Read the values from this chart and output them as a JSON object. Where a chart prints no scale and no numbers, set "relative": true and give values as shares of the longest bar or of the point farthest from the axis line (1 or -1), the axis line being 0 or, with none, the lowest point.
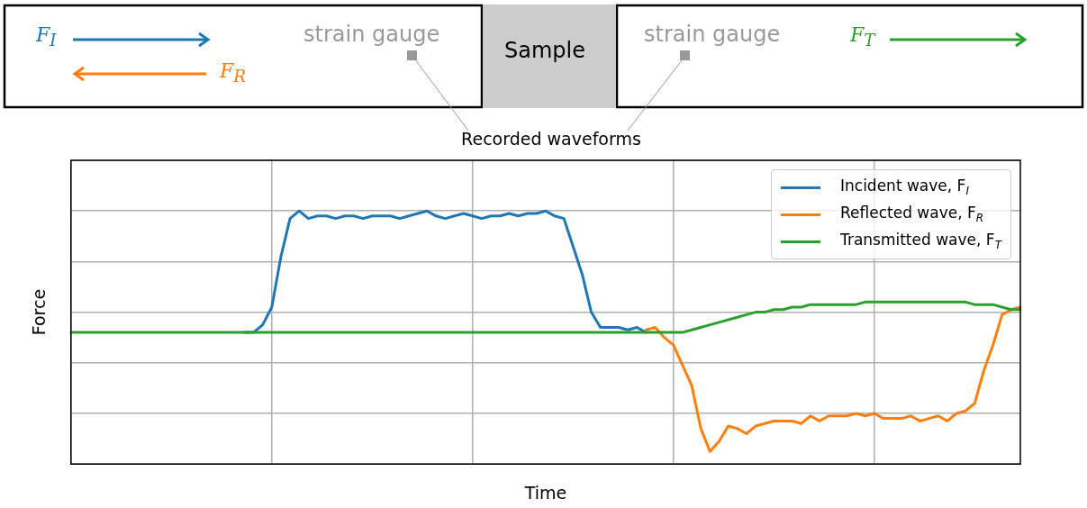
{
  "chart_data": {
    "type": "line",
    "title": "Recorded waveforms",
    "xlabel": "Time",
    "ylabel": "Force",
    "relative": true,
    "grid": true,
    "legend": "top right",
    "tick_labels": false,
    "marker": "none",
    "line_style": "solid",
    "annotations": [
      "F$_{I}$",
      "F$_{R}$",
      "strain gauge",
      "Sample",
      "strain gauge",
      "F$_{T}$"
    ],
    "categories": [
      null,
      null,
      null,
      null,
      null,
      null,
      null,
      null,
      null,
      null,
      null,
      null,
      null,
      null,
      null,
      null,
      null,
      null,
      null,
      null,
      null,
      null,
      null,
      null,
      null,
      null,
      null,
      null,
      null,
      null,
      null,
      null,
      null,
      null,
      null,
      null,
      null,
      null,
      null,
      null,
      null,
      null,
      null,
      null,
      null,
      null,
      null,
      null,
      null,
      null,
      null,
      null,
      null,
      null,
      null,
      null,
      null,
      null,
      null,
      null,
      null,
      null,
      null,
      null,
      null,
      null,
      null,
      null,
      null,
      null,
      null,
      null,
      null,
      null,
      null,
      null,
      null,
      null,
      null,
      null,
      null,
      null,
      null,
      null,
      null,
      null,
      null,
      null,
      null,
      null,
      null,
      null,
      null,
      null,
      null,
      null,
      null,
      null,
      null,
      null,
      null,
      null,
      null,
      null,
      null
    ],
    "series": [
      {
        "name": "Incident wave, F$_{I}$",
        "color": "#1f77b4",
        "values": [
          null,
          null,
          null,
          null,
          null,
          null,
          null,
          null,
          null,
          null,
          null,
          null,
          null,
          null,
          null,
          null,
          null,
          null,
          null,
          0.52,
          0.52,
          0.55,
          0.62,
          0.82,
          0.97,
          1.0,
          0.97,
          0.98,
          0.98,
          0.97,
          0.98,
          0.98,
          0.97,
          0.98,
          0.98,
          0.98,
          0.97,
          0.98,
          0.99,
          1.0,
          0.98,
          0.97,
          0.98,
          0.99,
          0.98,
          0.97,
          0.98,
          0.98,
          0.99,
          0.98,
          0.99,
          0.99,
          1.0,
          0.98,
          0.97,
          0.86,
          0.75,
          0.6,
          0.54,
          0.54,
          0.54,
          0.53,
          0.54,
          0.52,
          null,
          null,
          null,
          null,
          null,
          null,
          null,
          null,
          null,
          null,
          null,
          null,
          null,
          null,
          null,
          null,
          null,
          null,
          null,
          null,
          null,
          null,
          null,
          null,
          null,
          null,
          null,
          null,
          null,
          null,
          null,
          null,
          null,
          null,
          null,
          null,
          null,
          null,
          null,
          null,
          null
        ]
      },
      {
        "name": "Reflected wave, F$_{R}$",
        "color": "#ff7f0e",
        "values": [
          null,
          null,
          null,
          null,
          null,
          null,
          null,
          null,
          null,
          null,
          null,
          null,
          null,
          null,
          null,
          null,
          null,
          null,
          null,
          null,
          null,
          null,
          null,
          null,
          null,
          null,
          null,
          null,
          null,
          null,
          null,
          null,
          null,
          null,
          null,
          null,
          null,
          null,
          null,
          null,
          null,
          null,
          null,
          null,
          null,
          null,
          null,
          null,
          null,
          null,
          null,
          null,
          null,
          null,
          null,
          null,
          null,
          null,
          null,
          null,
          null,
          null,
          null,
          0.53,
          0.54,
          0.5,
          0.47,
          0.39,
          0.31,
          0.14,
          0.05,
          0.09,
          0.15,
          0.14,
          0.12,
          0.15,
          0.16,
          0.17,
          0.17,
          0.17,
          0.16,
          0.19,
          0.17,
          0.19,
          0.19,
          0.19,
          0.2,
          0.19,
          0.2,
          0.18,
          0.18,
          0.18,
          0.19,
          0.17,
          0.18,
          0.19,
          0.17,
          0.2,
          0.21,
          0.24,
          0.37,
          0.47,
          0.59,
          0.61,
          0.62
        ]
      },
      {
        "name": "Transmitted wave, F$_{T}$",
        "color": "#2ca02c",
        "values": [
          0.52,
          0.52,
          0.52,
          0.52,
          0.52,
          0.52,
          0.52,
          0.52,
          0.52,
          0.52,
          0.52,
          0.52,
          0.52,
          0.52,
          0.52,
          0.52,
          0.52,
          0.52,
          0.52,
          0.52,
          0.52,
          0.52,
          0.52,
          0.52,
          0.52,
          0.52,
          0.52,
          0.52,
          0.52,
          0.52,
          0.52,
          0.52,
          0.52,
          0.52,
          0.52,
          0.52,
          0.52,
          0.52,
          0.52,
          0.52,
          0.52,
          0.52,
          0.52,
          0.52,
          0.52,
          0.52,
          0.52,
          0.52,
          0.52,
          0.52,
          0.52,
          0.52,
          0.52,
          0.52,
          0.52,
          0.52,
          0.52,
          0.52,
          0.52,
          0.52,
          0.52,
          0.52,
          0.52,
          0.52,
          0.52,
          0.52,
          0.52,
          0.52,
          0.53,
          0.54,
          0.55,
          0.56,
          0.57,
          0.58,
          0.59,
          0.6,
          0.6,
          0.61,
          0.61,
          0.62,
          0.62,
          0.63,
          0.63,
          0.63,
          0.63,
          0.63,
          0.63,
          0.64,
          0.64,
          0.64,
          0.64,
          0.64,
          0.64,
          0.64,
          0.64,
          0.64,
          0.64,
          0.64,
          0.64,
          0.63,
          0.63,
          0.63,
          0.62,
          0.61,
          0.61
        ]
      }
    ]
  }
}
